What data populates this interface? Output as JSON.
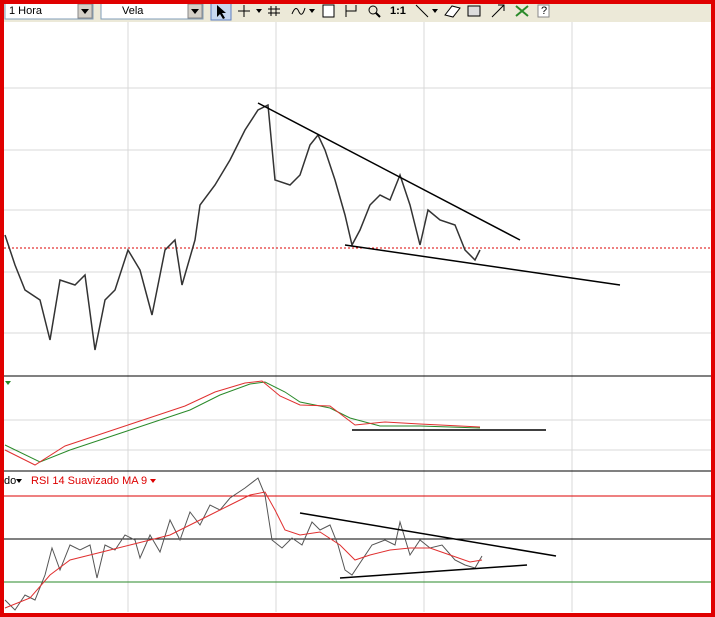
{
  "toolbar": {
    "timeframe": "1 Hora",
    "chart_style": "Vela",
    "zoom_button": "1:1",
    "help_button": "?"
  },
  "indicator_panel": {
    "left_label": "do",
    "rsi_label": "RSI 14 Suavizado MA 9"
  }
}
